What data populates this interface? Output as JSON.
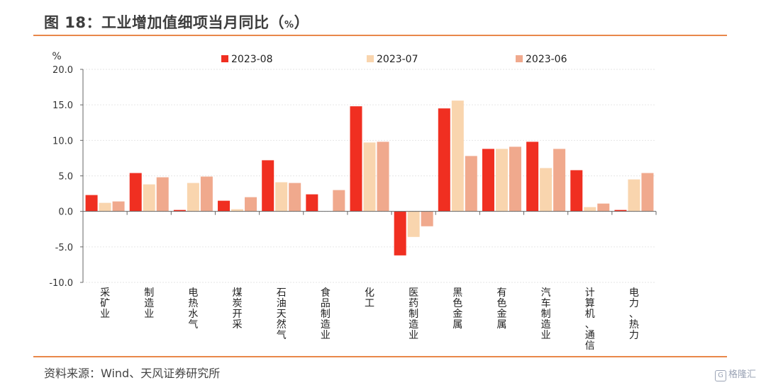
{
  "header": {
    "title": "图 18：工业增加值细项当月同比（",
    "title_unit": "%",
    "title_close": "）"
  },
  "footer": {
    "source": "资料来源：Wind、天风证券研究所",
    "watermark": "格隆汇"
  },
  "chart_data": {
    "type": "bar",
    "title": "",
    "ylabel": "%",
    "xlabel": "",
    "ylim": [
      -10,
      20
    ],
    "yticks": [
      20.0,
      15.0,
      10.0,
      5.0,
      0.0,
      -5.0,
      -10.0
    ],
    "ytick_labels": [
      "20.0",
      "15.0",
      "10.0",
      "5.0",
      "0.0",
      "-5.0",
      "-10.0"
    ],
    "grid": true,
    "legend": "top",
    "categories": [
      "采矿业",
      "制造业",
      "电热水气",
      "煤炭开采",
      "石油天然气",
      "食品制造业",
      "化工",
      "医药制造业",
      "黑色金属",
      "有色金属",
      "汽车制造业",
      "计算机、通信",
      "电力、热力"
    ],
    "series": [
      {
        "name": "2023-08",
        "color": "#f02f21",
        "values": [
          2.3,
          5.4,
          0.2,
          1.5,
          7.2,
          2.4,
          14.8,
          -6.2,
          14.5,
          8.8,
          9.8,
          5.8,
          0.2
        ]
      },
      {
        "name": "2023-07",
        "color": "#f9d5ae",
        "values": [
          1.2,
          3.8,
          4.0,
          0.3,
          4.1,
          0.0,
          9.7,
          -3.6,
          15.6,
          8.8,
          6.1,
          0.6,
          4.5
        ]
      },
      {
        "name": "2023-06",
        "color": "#f0a98d",
        "values": [
          1.4,
          4.8,
          4.9,
          2.0,
          4.0,
          3.0,
          9.8,
          -2.1,
          7.8,
          9.1,
          8.8,
          1.1,
          5.4
        ]
      }
    ]
  }
}
